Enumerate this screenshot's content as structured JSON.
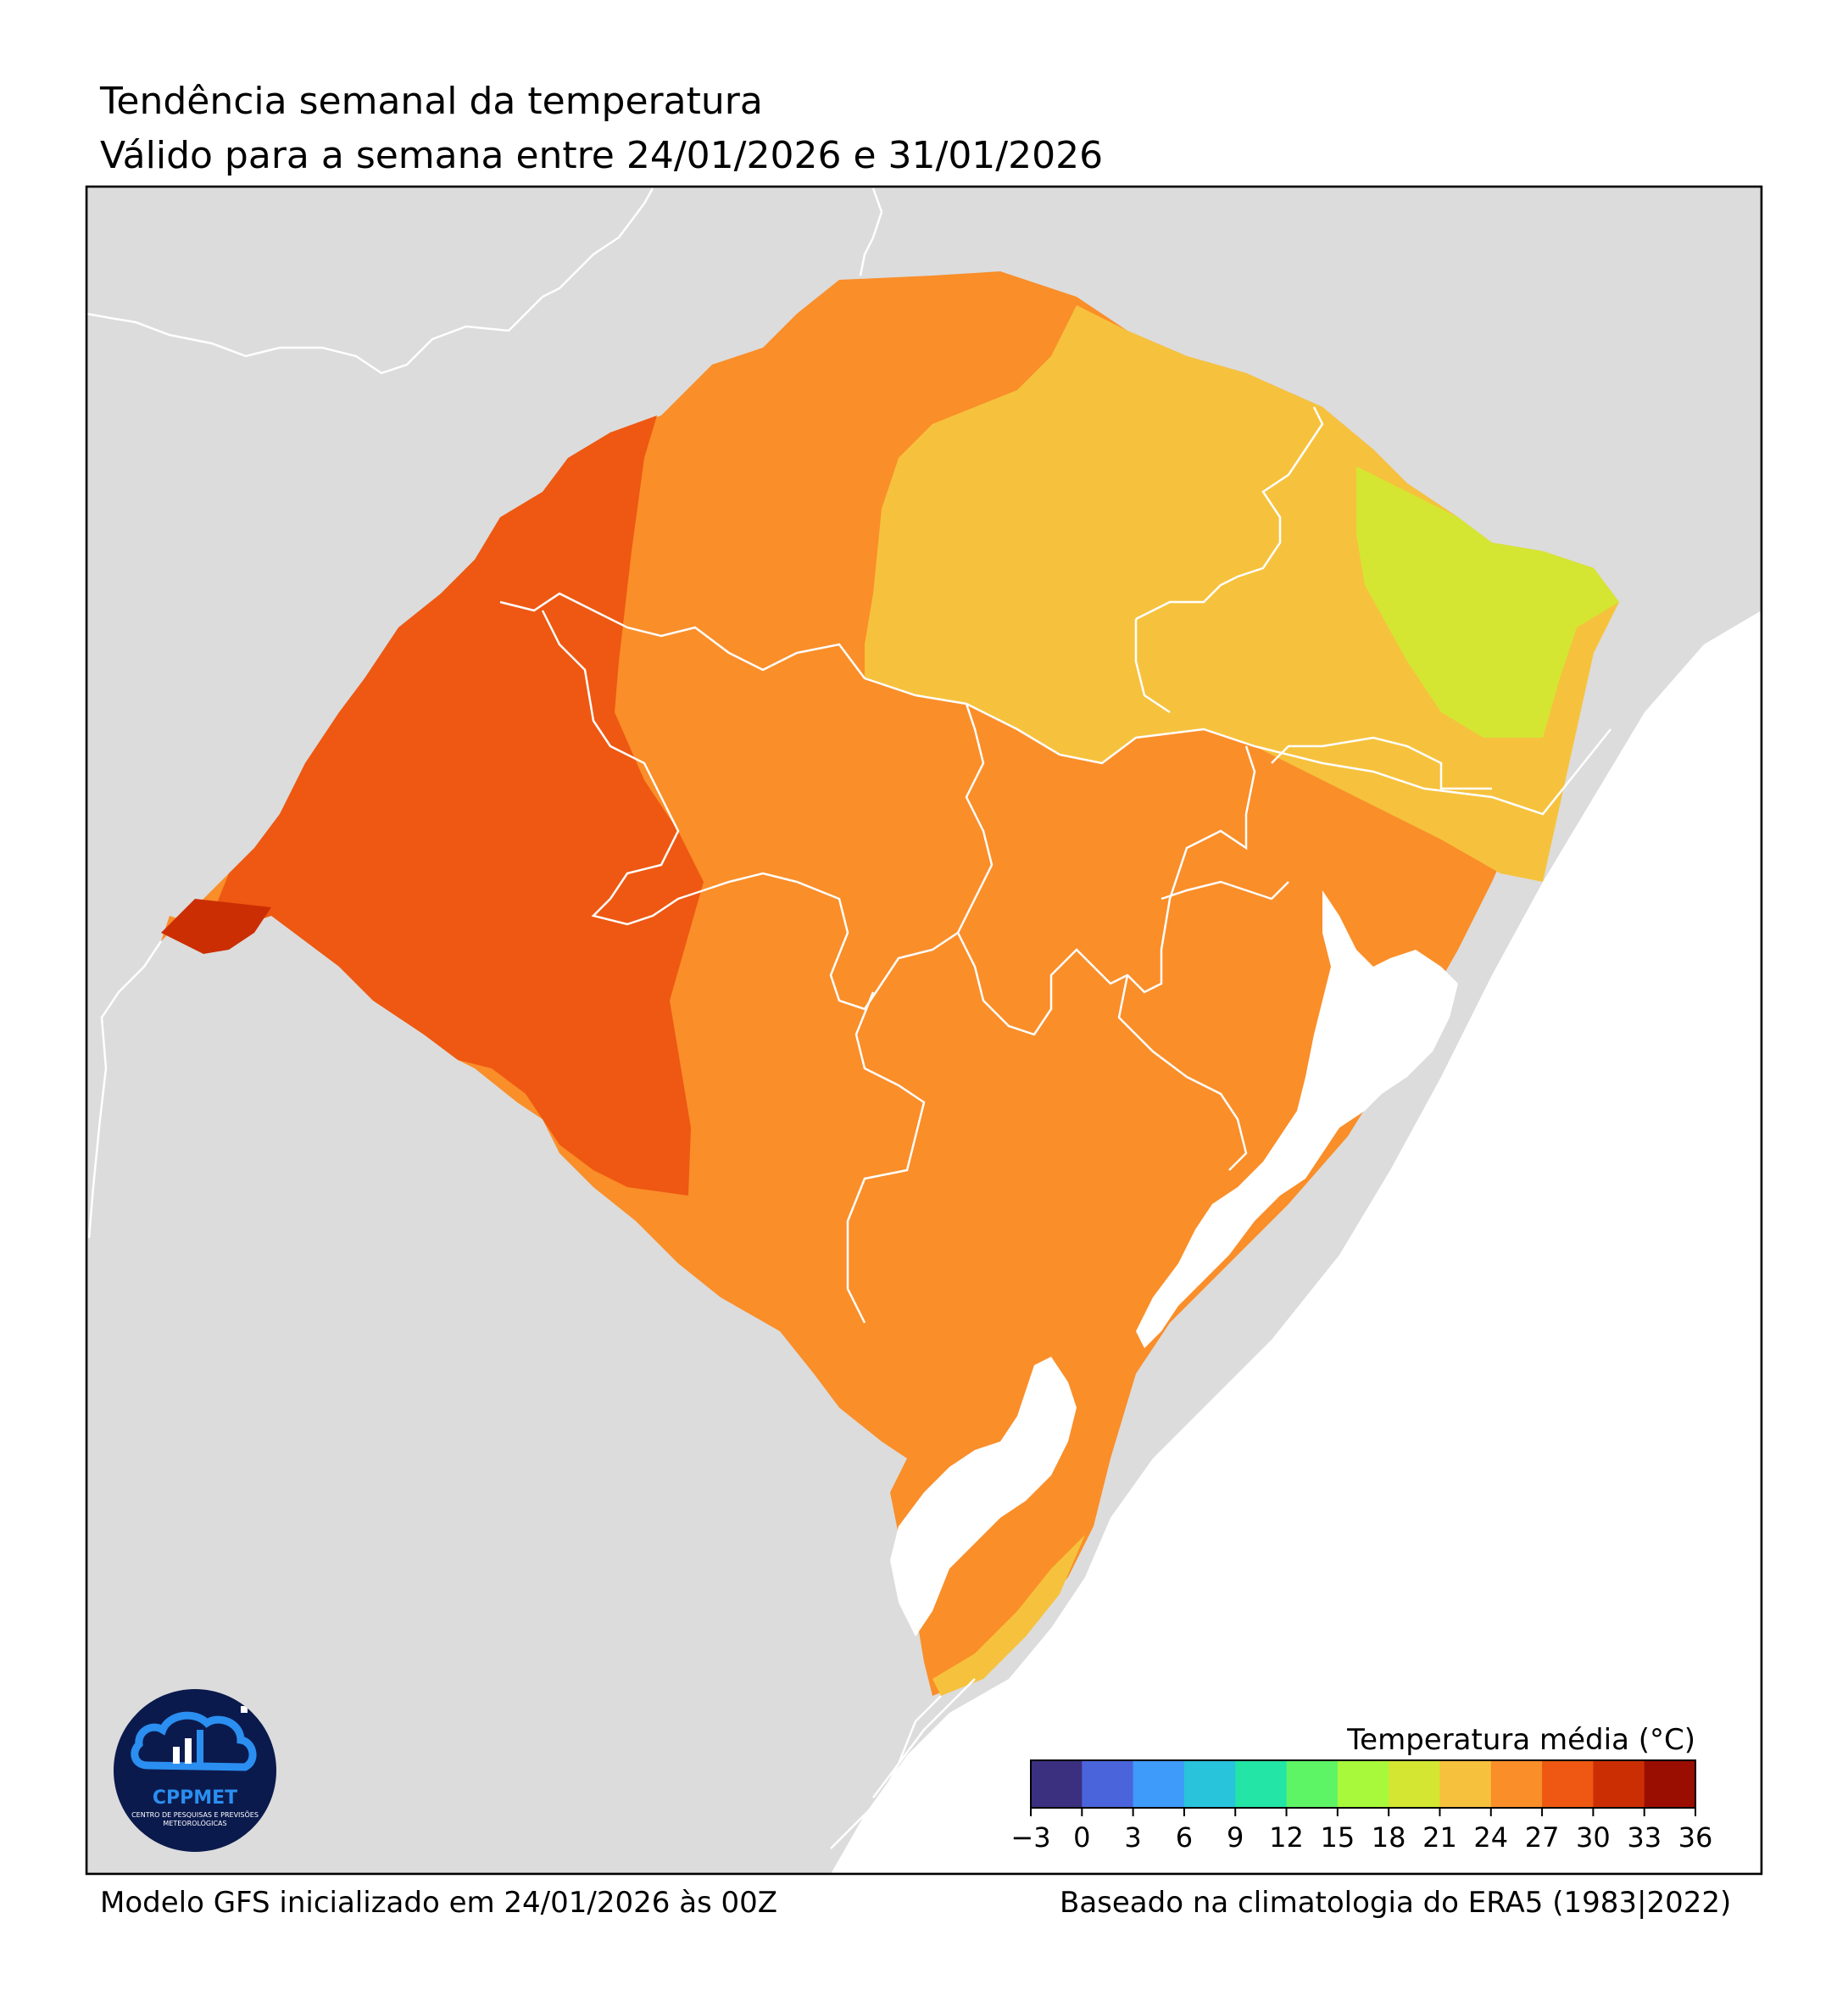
{
  "header": {
    "title": "Tendência semanal da temperatura",
    "subtitle": "Válido para a semana entre 24/01/2026 e 31/01/2026"
  },
  "footer": {
    "model": "Modelo GFS inicializado em 24/01/2026 às 00Z",
    "climatology": "Baseado na climatologia do ERA5 (1983|2022)"
  },
  "colorbar": {
    "title": "Temperatura média (°C)",
    "ticks": [
      "−3",
      "0",
      "3",
      "6",
      "9",
      "12",
      "15",
      "18",
      "21",
      "24",
      "27",
      "30",
      "33",
      "36"
    ],
    "colors": [
      "#3b2f7f",
      "#4a64db",
      "#3f9bf9",
      "#28c4dc",
      "#22e5a6",
      "#5df466",
      "#a8f93b",
      "#d4e632",
      "#f6c23d",
      "#fa8e29",
      "#ee5812",
      "#cc2e04",
      "#9a0d01"
    ]
  },
  "logo": {
    "name": "CPPMET",
    "subtitle": "CENTRO DE PESQUISAS E PREVISÕES METEOROLÓGICAS"
  },
  "colors": {
    "land_background": "#dcdcdc",
    "ocean": "#ffffff",
    "border_lines": "#ffffff"
  }
}
